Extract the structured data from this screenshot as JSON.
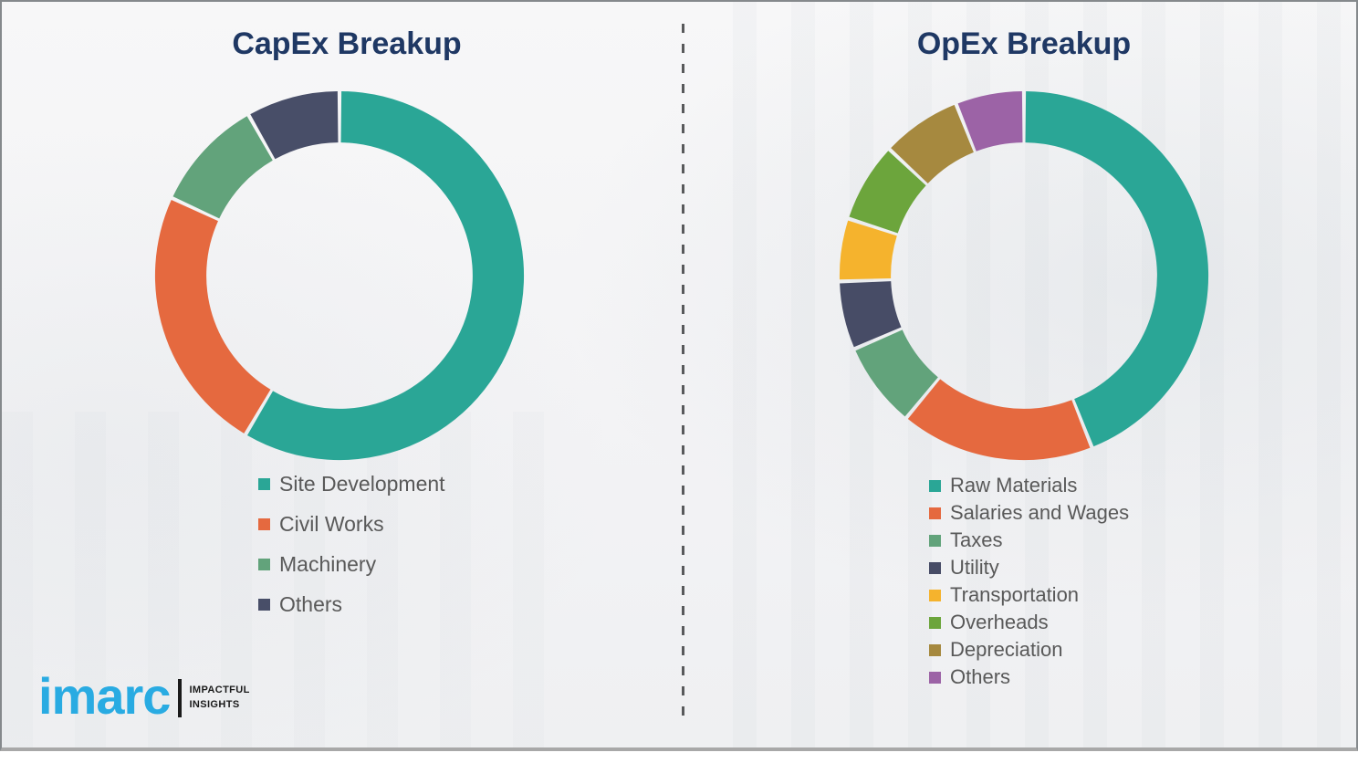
{
  "slide": {
    "background_color": "#f3f4f5",
    "divider_color": "#58595B",
    "border_color": "#85898c"
  },
  "chart_data": [
    {
      "type": "pie",
      "subtype": "donut",
      "id": "capex",
      "title": "CapEx Breakup",
      "title_color": "#1F3864",
      "categories": [
        "Site Development",
        "Civil Works",
        "Machinery",
        "Others"
      ],
      "values": [
        58.5,
        23.4,
        9.9,
        8.2
      ],
      "unit": "percent-of-ring (estimated from arc angles, no numeric labels shown)",
      "colors": [
        "#2AA696",
        "#E5693F",
        "#62A37B",
        "#484E68"
      ],
      "start_angle_deg": 0,
      "direction": "clockwise",
      "donut_hole_ratio": 0.72,
      "legend_position": "below-left",
      "legend_text_color": "#595959"
    },
    {
      "type": "pie",
      "subtype": "donut",
      "id": "opex",
      "title": "OpEx Breakup",
      "title_color": "#1F3864",
      "categories": [
        "Raw Materials",
        "Salaries and Wages",
        "Taxes",
        "Utility",
        "Transportation",
        "Overheads",
        "Depreciation",
        "Others"
      ],
      "values": [
        44,
        17,
        7.5,
        6,
        5.5,
        7,
        7,
        6
      ],
      "unit": "percent-of-ring (estimated from arc angles, no numeric labels shown)",
      "colors": [
        "#2AA696",
        "#E5693F",
        "#62A37B",
        "#474C66",
        "#F5B32D",
        "#6CA53C",
        "#A6893F",
        "#9C63A6"
      ],
      "start_angle_deg": 0,
      "direction": "clockwise",
      "donut_hole_ratio": 0.72,
      "legend_position": "below-left",
      "legend_text_color": "#595959"
    }
  ],
  "logo": {
    "wordmark": "imarc",
    "wordmark_color": "#29ABE2",
    "tagline_line1": "IMPACTFUL",
    "tagline_line2": "INSIGHTS",
    "tagline_color": "#1A1A1A"
  }
}
